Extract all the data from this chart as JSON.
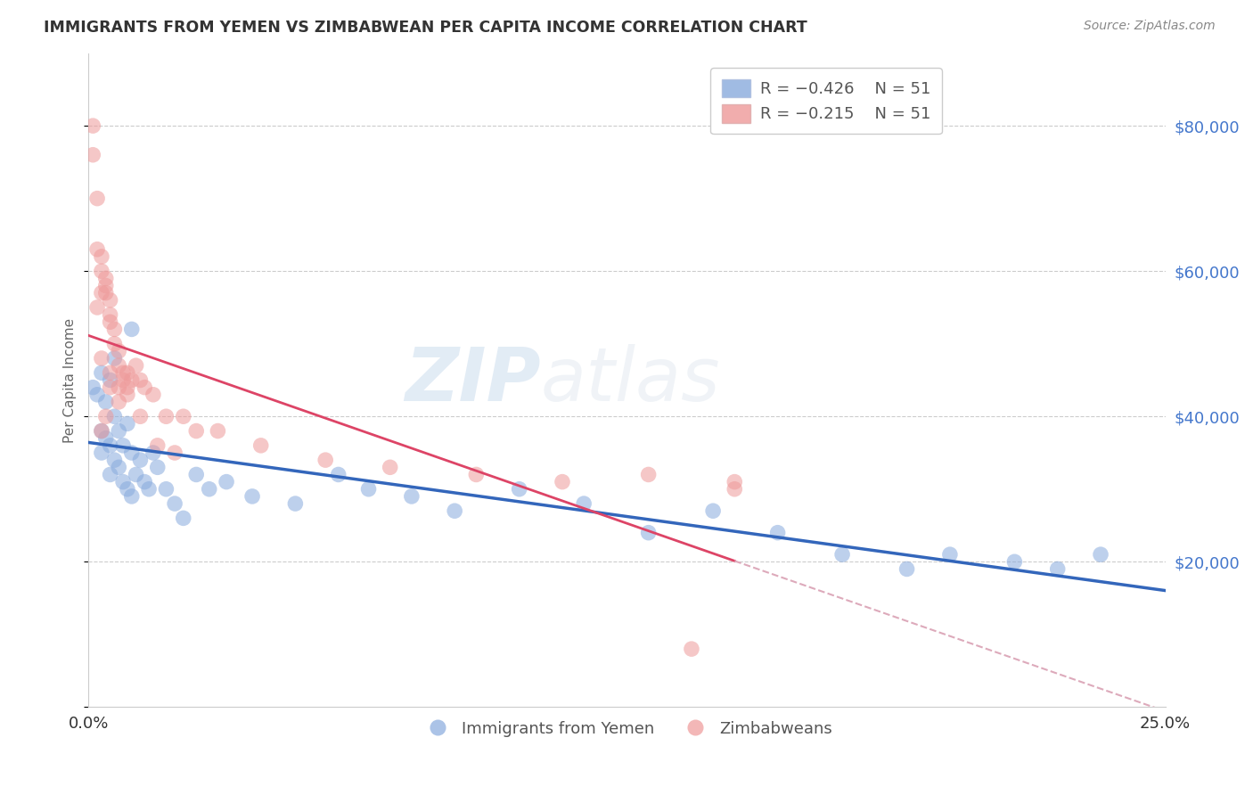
{
  "title": "IMMIGRANTS FROM YEMEN VS ZIMBABWEAN PER CAPITA INCOME CORRELATION CHART",
  "source": "Source: ZipAtlas.com",
  "ylabel": "Per Capita Income",
  "xlim": [
    0.0,
    0.25
  ],
  "ylim": [
    0,
    90000
  ],
  "yticks": [
    0,
    20000,
    40000,
    60000,
    80000
  ],
  "ytick_labels": [
    "",
    "$20,000",
    "$40,000",
    "$60,000",
    "$80,000"
  ],
  "xticks": [
    0.0,
    0.05,
    0.1,
    0.15,
    0.2,
    0.25
  ],
  "xtick_labels": [
    "0.0%",
    "",
    "",
    "",
    "",
    "25.0%"
  ],
  "blue_color": "#88aadd",
  "pink_color": "#ee9999",
  "blue_line_color": "#3366bb",
  "pink_line_color": "#dd4466",
  "pink_dash_color": "#ddaabb",
  "watermark_zip": "ZIP",
  "watermark_atlas": "atlas",
  "legend_label_blue": "Immigrants from Yemen",
  "legend_label_pink": "Zimbabweans",
  "legend_r_blue": "R = ",
  "legend_r_blue_val": "-0.426",
  "legend_n_blue": "   N = ",
  "legend_n_blue_val": "51",
  "legend_r_pink": "R = ",
  "legend_r_pink_val": "-0.215",
  "legend_n_pink": "   N = ",
  "legend_n_pink_val": "51",
  "blue_scatter_x": [
    0.001,
    0.002,
    0.003,
    0.003,
    0.004,
    0.004,
    0.005,
    0.005,
    0.005,
    0.006,
    0.006,
    0.007,
    0.007,
    0.008,
    0.008,
    0.009,
    0.009,
    0.01,
    0.01,
    0.011,
    0.012,
    0.013,
    0.014,
    0.015,
    0.016,
    0.018,
    0.02,
    0.022,
    0.025,
    0.028,
    0.032,
    0.038,
    0.048,
    0.058,
    0.065,
    0.075,
    0.085,
    0.1,
    0.115,
    0.13,
    0.145,
    0.16,
    0.175,
    0.19,
    0.2,
    0.215,
    0.225,
    0.235,
    0.01,
    0.006,
    0.003
  ],
  "blue_scatter_y": [
    44000,
    43000,
    38000,
    35000,
    42000,
    37000,
    45000,
    36000,
    32000,
    40000,
    34000,
    38000,
    33000,
    36000,
    31000,
    39000,
    30000,
    35000,
    29000,
    32000,
    34000,
    31000,
    30000,
    35000,
    33000,
    30000,
    28000,
    26000,
    32000,
    30000,
    31000,
    29000,
    28000,
    32000,
    30000,
    29000,
    27000,
    30000,
    28000,
    24000,
    27000,
    24000,
    21000,
    19000,
    21000,
    20000,
    19000,
    21000,
    52000,
    48000,
    46000
  ],
  "pink_scatter_x": [
    0.001,
    0.001,
    0.002,
    0.002,
    0.003,
    0.003,
    0.004,
    0.004,
    0.005,
    0.005,
    0.005,
    0.006,
    0.006,
    0.007,
    0.007,
    0.008,
    0.008,
    0.009,
    0.009,
    0.01,
    0.011,
    0.012,
    0.013,
    0.015,
    0.018,
    0.022,
    0.03,
    0.04,
    0.055,
    0.07,
    0.09,
    0.11,
    0.13,
    0.15,
    0.002,
    0.003,
    0.004,
    0.005,
    0.007,
    0.009,
    0.012,
    0.016,
    0.02,
    0.025,
    0.003,
    0.005,
    0.007,
    0.14,
    0.003,
    0.004,
    0.15
  ],
  "pink_scatter_y": [
    80000,
    76000,
    70000,
    63000,
    62000,
    60000,
    58000,
    57000,
    56000,
    54000,
    53000,
    52000,
    50000,
    49000,
    47000,
    46000,
    45000,
    46000,
    44000,
    45000,
    47000,
    45000,
    44000,
    43000,
    40000,
    40000,
    38000,
    36000,
    34000,
    33000,
    32000,
    31000,
    32000,
    30000,
    55000,
    57000,
    59000,
    44000,
    42000,
    43000,
    40000,
    36000,
    35000,
    38000,
    48000,
    46000,
    44000,
    8000,
    38000,
    40000,
    31000
  ]
}
